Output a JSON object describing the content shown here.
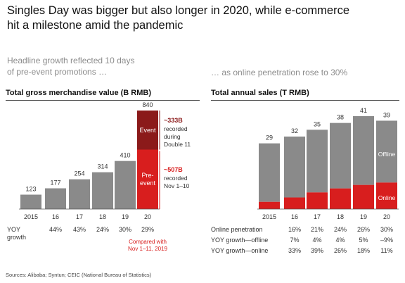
{
  "title_lines": [
    "Singles Day was bigger but also longer in 2020, while e-commerce",
    "hit a milestone amid the pandemic"
  ],
  "left_subtitle_lines": [
    "Headline growth reflected 10 days",
    "of pre-event promotions …"
  ],
  "right_subtitle": "… as online penetration rose to 30%",
  "source": "Sources: Alibaba; Syntun; CEIC (National Bureau of Statistics)",
  "colors": {
    "gray": "#8a8a8a",
    "red": "#d81e1e",
    "dark_red": "#8b1a1a",
    "label": "#333333"
  },
  "chart_data": [
    {
      "type": "bar",
      "title": "Total gross merchandise value (B RMB)",
      "categories": [
        "2015",
        "16",
        "17",
        "18",
        "19",
        "20"
      ],
      "values": [
        123,
        177,
        254,
        314,
        410,
        840
      ],
      "value_labels": [
        "123",
        "177",
        "254",
        "314",
        "410",
        "840"
      ],
      "stacked_last": {
        "segments": [
          {
            "name": "Pre-event",
            "label_lines": [
              "Pre-",
              "event"
            ],
            "value": 507
          },
          {
            "name": "Event",
            "label_lines": [
              "Event"
            ],
            "value": 333
          }
        ]
      },
      "annotations": [
        {
          "value_text": "~333B",
          "text_lines": [
            "recorded",
            "during",
            "Double 11"
          ]
        },
        {
          "value_text": "~507B",
          "text_lines": [
            "recorded",
            "Nov 1–10"
          ]
        }
      ],
      "table": {
        "row_label_lines": [
          "YOY",
          "growth"
        ],
        "values": [
          "",
          "44%",
          "43%",
          "24%",
          "30%",
          "29%"
        ]
      },
      "note_lines": [
        "Compared with",
        "Nov 1–11, 2019"
      ]
    },
    {
      "type": "bar",
      "title": "Total annual sales (T RMB)",
      "categories": [
        "2015",
        "16",
        "17",
        "18",
        "19",
        "20"
      ],
      "values": [
        29,
        32,
        35,
        38,
        41,
        39
      ],
      "value_labels": [
        "29",
        "32",
        "35",
        "38",
        "41",
        "39"
      ],
      "online_penetration_pct": [
        0,
        16,
        21,
        24,
        26,
        30
      ],
      "series": [
        {
          "name": "Offline"
        },
        {
          "name": "Online"
        }
      ],
      "table": [
        {
          "label": "Online penetration",
          "values": [
            "",
            "16%",
            "21%",
            "24%",
            "26%",
            "30%"
          ]
        },
        {
          "label": "YOY growth—offline",
          "values": [
            "",
            "7%",
            "4%",
            "4%",
            "5%",
            "–9%"
          ]
        },
        {
          "label": "YOY growth—online",
          "values": [
            "",
            "33%",
            "39%",
            "26%",
            "18%",
            "11%"
          ]
        }
      ]
    }
  ]
}
